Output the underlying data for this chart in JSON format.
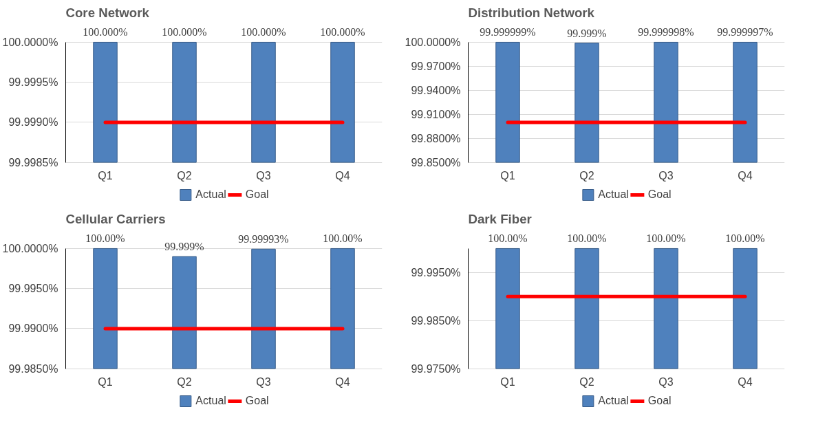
{
  "chart_data": [
    {
      "type": "bar",
      "title": "Core Network",
      "categories": [
        "Q1",
        "Q2",
        "Q3",
        "Q4"
      ],
      "ylim": [
        99.9985,
        100.0
      ],
      "yticks": [
        {
          "value": 99.9985,
          "label": "99.9985%"
        },
        {
          "value": 99.999,
          "label": "99.9990%"
        },
        {
          "value": 99.9995,
          "label": "99.9995%"
        },
        {
          "value": 100.0,
          "label": "100.0000%"
        }
      ],
      "grid": "y",
      "legend": "bottom",
      "series": [
        {
          "name": "Actual",
          "type": "bar",
          "color": "#4f81bd",
          "values": [
            100.0,
            100.0,
            100.0,
            100.0
          ],
          "value_labels": [
            "100.000%",
            "100.000%",
            "100.000%",
            "100.000%"
          ]
        },
        {
          "name": "Goal",
          "type": "line",
          "color": "#ff0000",
          "values": [
            99.999,
            99.999,
            99.999,
            99.999
          ]
        }
      ]
    },
    {
      "type": "bar",
      "title": "Distribution Network",
      "categories": [
        "Q1",
        "Q2",
        "Q3",
        "Q4"
      ],
      "ylim": [
        99.85,
        100.0
      ],
      "yticks": [
        {
          "value": 99.85,
          "label": "99.8500%"
        },
        {
          "value": 99.88,
          "label": "99.8800%"
        },
        {
          "value": 99.91,
          "label": "99.9100%"
        },
        {
          "value": 99.94,
          "label": "99.9400%"
        },
        {
          "value": 99.97,
          "label": "99.9700%"
        },
        {
          "value": 100.0,
          "label": "100.0000%"
        }
      ],
      "grid": "y",
      "legend": "bottom",
      "series": [
        {
          "name": "Actual",
          "type": "bar",
          "color": "#4f81bd",
          "values": [
            99.999999,
            99.999,
            99.999998,
            99.999997
          ],
          "value_labels": [
            "99.999999%",
            "99.999%",
            "99.999998%",
            "99.999997%"
          ]
        },
        {
          "name": "Goal",
          "type": "line",
          "color": "#ff0000",
          "values": [
            99.9,
            99.9,
            99.9,
            99.9
          ]
        }
      ]
    },
    {
      "type": "bar",
      "title": "Cellular Carriers",
      "categories": [
        "Q1",
        "Q2",
        "Q3",
        "Q4"
      ],
      "ylim": [
        99.985,
        100.0
      ],
      "yticks": [
        {
          "value": 99.985,
          "label": "99.9850%"
        },
        {
          "value": 99.99,
          "label": "99.9900%"
        },
        {
          "value": 99.995,
          "label": "99.9950%"
        },
        {
          "value": 100.0,
          "label": "100.0000%"
        }
      ],
      "grid": "y",
      "legend": "bottom",
      "series": [
        {
          "name": "Actual",
          "type": "bar",
          "color": "#4f81bd",
          "values": [
            100.0,
            99.999,
            99.99993,
            100.0
          ],
          "value_labels": [
            "100.00%",
            "99.999%",
            "99.99993%",
            "100.00%"
          ]
        },
        {
          "name": "Goal",
          "type": "line",
          "color": "#ff0000",
          "values": [
            99.99,
            99.99,
            99.99,
            99.99
          ]
        }
      ]
    },
    {
      "type": "bar",
      "title": "Dark Fiber",
      "categories": [
        "Q1",
        "Q2",
        "Q3",
        "Q4"
      ],
      "ylim": [
        99.975,
        100.0
      ],
      "yticks": [
        {
          "value": 99.975,
          "label": "99.9750%"
        },
        {
          "value": 99.985,
          "label": "99.9850%"
        },
        {
          "value": 99.995,
          "label": "99.9950%"
        }
      ],
      "grid": "y",
      "legend": "bottom",
      "series": [
        {
          "name": "Actual",
          "type": "bar",
          "color": "#4f81bd",
          "values": [
            100.0,
            100.0,
            100.0,
            100.0
          ],
          "value_labels": [
            "100.00%",
            "100.00%",
            "100.00%",
            "100.00%"
          ]
        },
        {
          "name": "Goal",
          "type": "line",
          "color": "#ff0000",
          "values": [
            99.99,
            99.99,
            99.99,
            99.99
          ]
        }
      ]
    }
  ]
}
